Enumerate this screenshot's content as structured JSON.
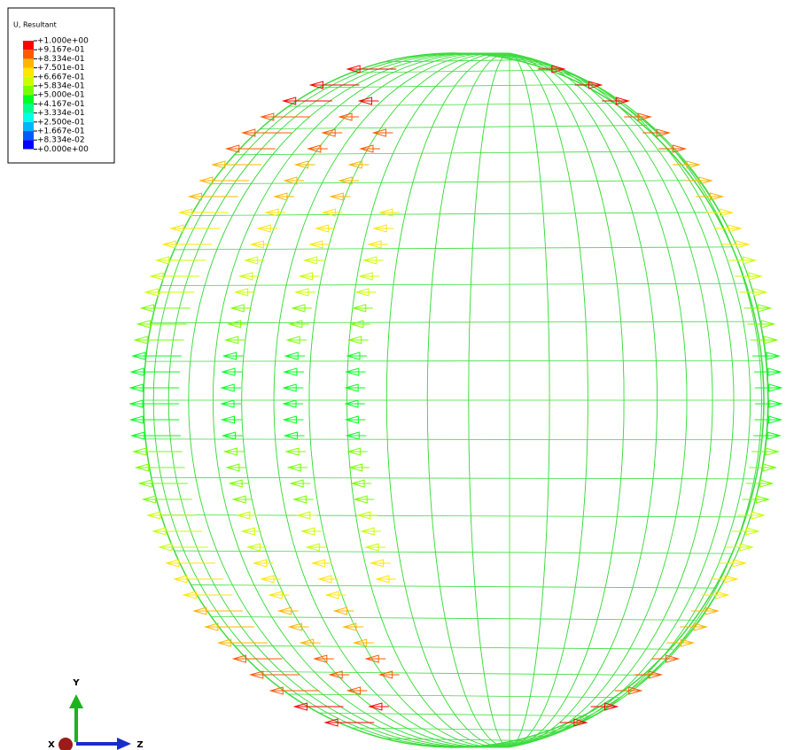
{
  "legend": {
    "title": "U, Resultant",
    "labels": [
      "+1.000e+00",
      "+9.167e-01",
      "+8.334e-01",
      "+7.501e-01",
      "+6.667e-01",
      "+5.834e-01",
      "+5.000e-01",
      "+4.167e-01",
      "+3.334e-01",
      "+2.500e-01",
      "+1.667e-01",
      "+8.334e-02",
      "+0.000e+00"
    ],
    "colors": [
      "#ff0000",
      "#ff5a00",
      "#ffb400",
      "#ffe600",
      "#c8ff00",
      "#7aff00",
      "#00ff1e",
      "#00ff8c",
      "#00ffe6",
      "#00b4ff",
      "#005aff",
      "#0000ff"
    ]
  },
  "triad": {
    "x": "X",
    "y": "Y",
    "z": "Z"
  }
}
